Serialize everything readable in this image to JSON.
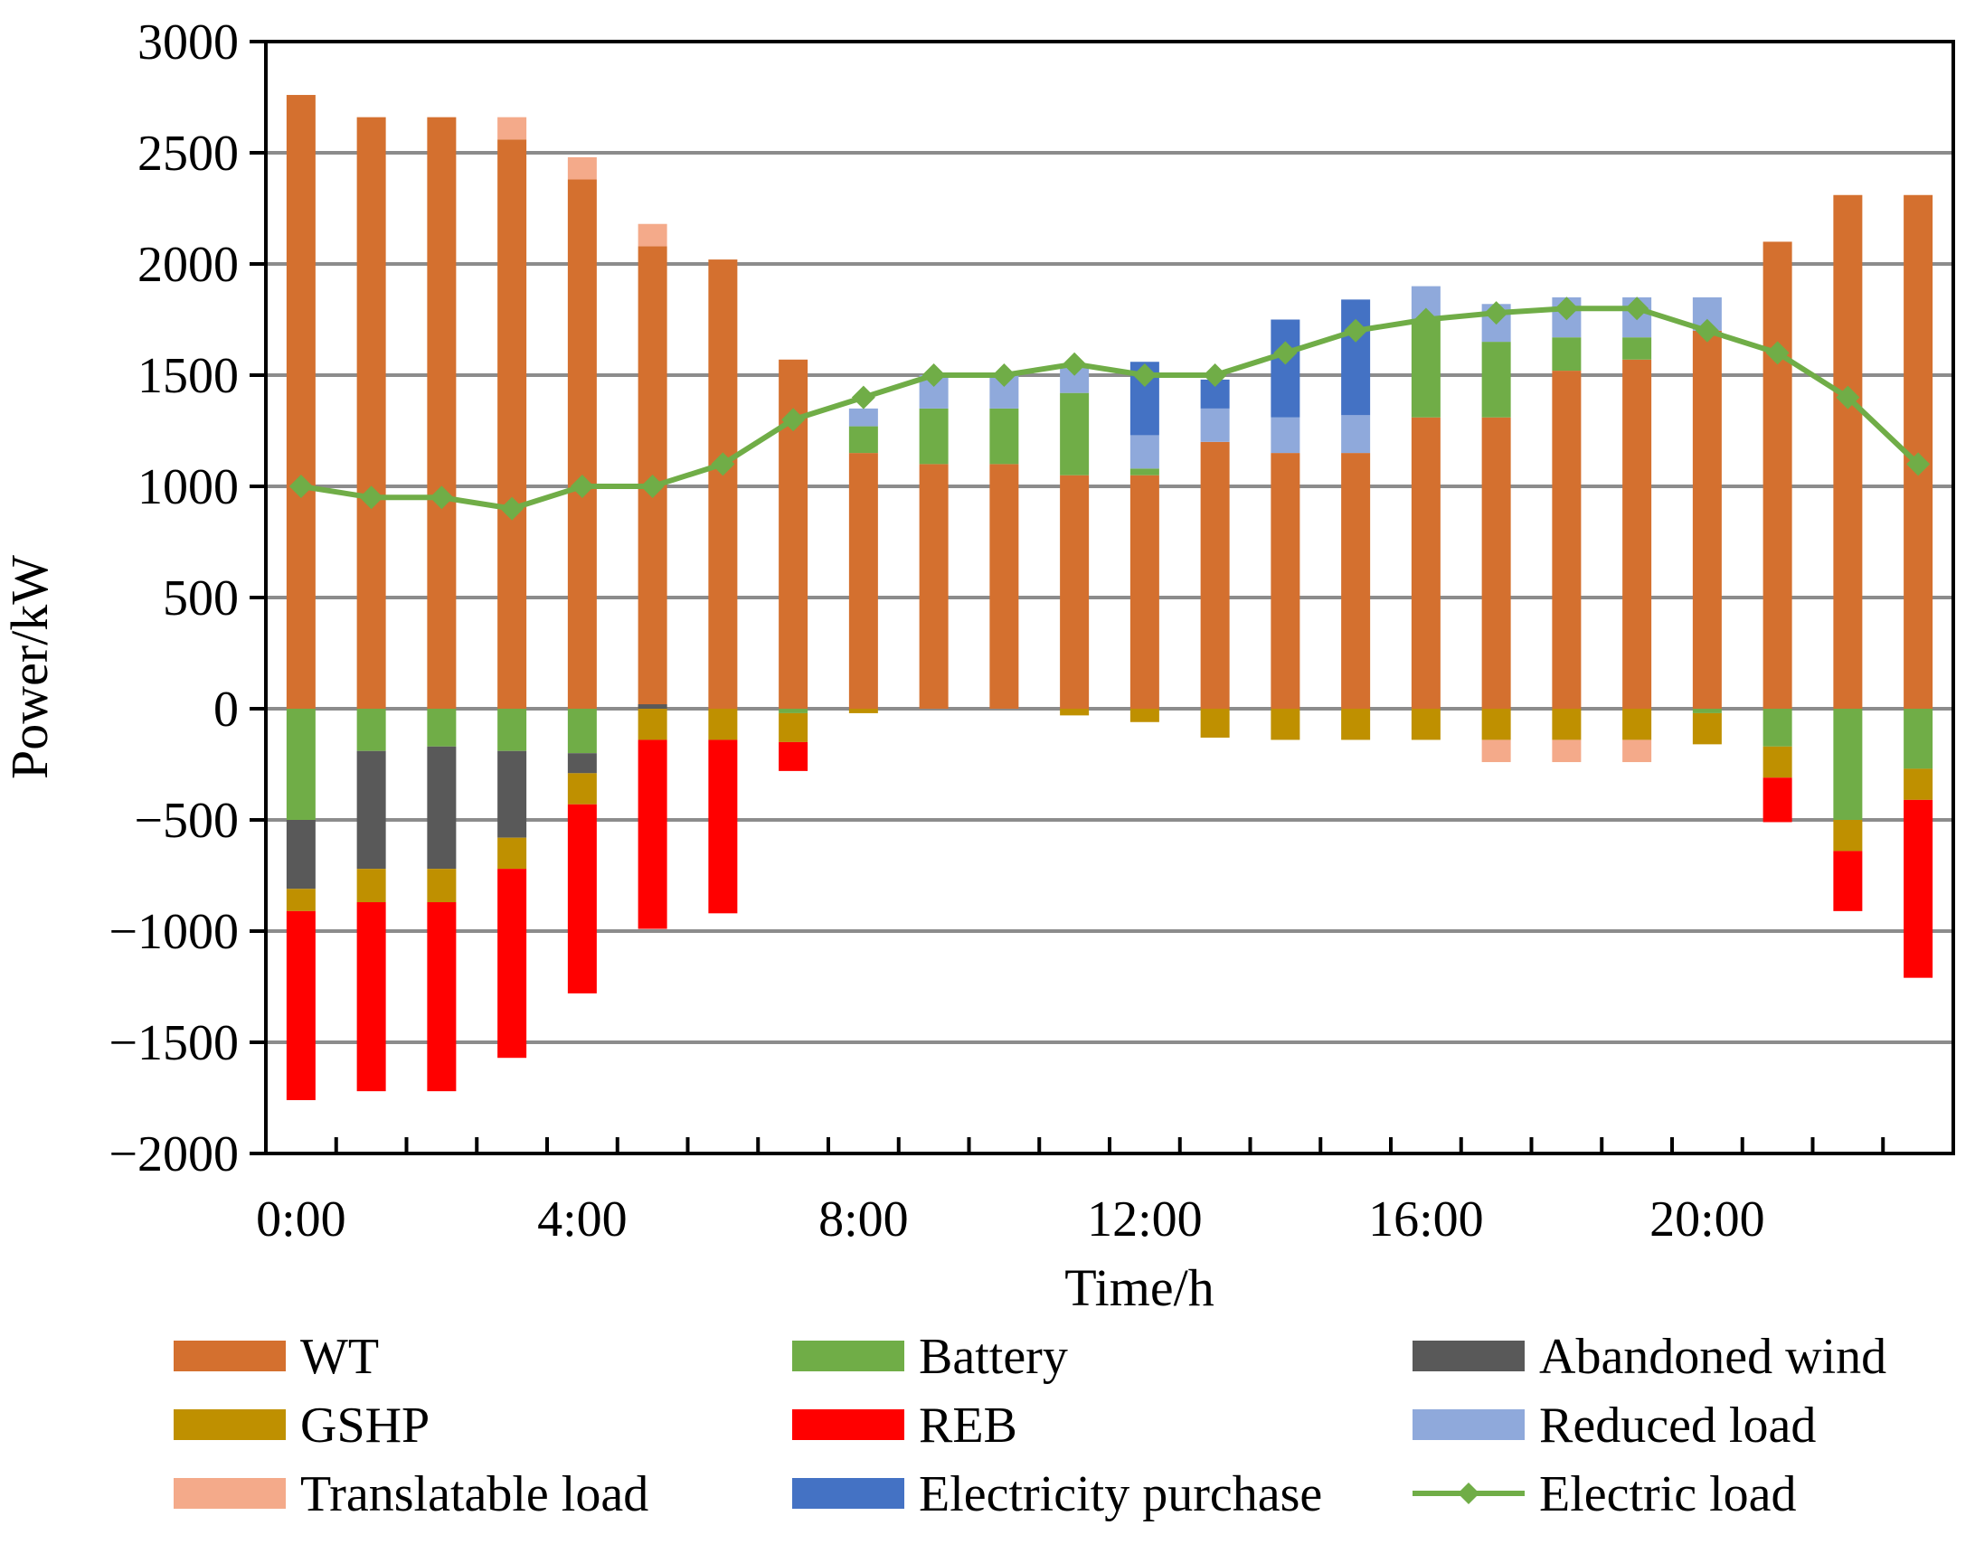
{
  "chart_data": {
    "type": "bar",
    "stacked": true,
    "title": "",
    "xlabel": "Time/h",
    "ylabel": "Power/kW",
    "ylim": [
      -2000,
      3000
    ],
    "y_ticks": [
      3000,
      2500,
      2000,
      1500,
      1000,
      500,
      0,
      -500,
      -1000,
      -1500,
      -2000
    ],
    "y_tick_labels": [
      "3000",
      "2500",
      "2000",
      "1500",
      "1000",
      "500",
      "0",
      "−5 00",
      "−1000",
      "−1500",
      "−2000"
    ],
    "hours": [
      0,
      1,
      2,
      3,
      4,
      5,
      6,
      7,
      8,
      9,
      10,
      11,
      12,
      13,
      14,
      15,
      16,
      17,
      18,
      19,
      20,
      21,
      22,
      23
    ],
    "x_tick_labels": [
      {
        "hour": 0,
        "label": "0:00"
      },
      {
        "hour": 4,
        "label": "4:00"
      },
      {
        "hour": 8,
        "label": "8:00"
      },
      {
        "hour": 12,
        "label": "12:00"
      },
      {
        "hour": 16,
        "label": "16:00"
      },
      {
        "hour": 20,
        "label": "20:00"
      }
    ],
    "colors": {
      "WT": "#D4702F",
      "Battery": "#70AD47",
      "Abandoned wind": "#595959",
      "GSHP": "#BF9000",
      "REB": "#FF0000",
      "Reduced load": "#8FA9DB",
      "Translatable load": "#F4AA8A",
      "Electricity purchase": "#4472C4",
      "Electric load": "#70AD47",
      "grid": "#8C8C8C"
    },
    "positive_series": [
      {
        "name": "WT",
        "values": [
          2760,
          2660,
          2660,
          2560,
          2380,
          2080,
          2020,
          1570,
          1150,
          1100,
          1100,
          1050,
          1050,
          1200,
          1150,
          1150,
          1310,
          1310,
          1520,
          1570,
          1700,
          2100,
          2310,
          2310
        ]
      },
      {
        "name": "Battery",
        "values": [
          0,
          0,
          0,
          0,
          0,
          0,
          0,
          0,
          120,
          250,
          250,
          370,
          30,
          0,
          0,
          0,
          440,
          340,
          150,
          100,
          0,
          0,
          0,
          0
        ]
      },
      {
        "name": "Reduced load",
        "values": [
          0,
          0,
          0,
          0,
          0,
          0,
          0,
          0,
          80,
          150,
          150,
          130,
          150,
          150,
          160,
          170,
          150,
          170,
          180,
          180,
          150,
          0,
          0,
          0
        ]
      },
      {
        "name": "Electricity purchase",
        "values": [
          0,
          0,
          0,
          0,
          0,
          0,
          0,
          0,
          0,
          0,
          0,
          0,
          330,
          130,
          440,
          520,
          0,
          0,
          0,
          0,
          0,
          0,
          0,
          0
        ]
      },
      {
        "name": "Translatable load",
        "values": [
          0,
          0,
          0,
          100,
          100,
          100,
          0,
          0,
          0,
          0,
          0,
          0,
          0,
          0,
          0,
          0,
          0,
          0,
          0,
          0,
          0,
          0,
          0,
          0
        ]
      }
    ],
    "negative_series": [
      {
        "name": "Battery",
        "values": [
          -500,
          -190,
          -170,
          -190,
          -200,
          0,
          0,
          -20,
          0,
          0,
          0,
          0,
          0,
          0,
          0,
          0,
          0,
          0,
          0,
          0,
          -20,
          -170,
          -500,
          -270
        ]
      },
      {
        "name": "Abandoned wind",
        "values": [
          -310,
          -530,
          -550,
          -390,
          -90,
          20,
          0,
          0,
          0,
          0,
          0,
          0,
          0,
          0,
          0,
          0,
          0,
          0,
          0,
          0,
          0,
          0,
          0,
          0
        ]
      },
      {
        "name": "GSHP",
        "values": [
          -100,
          -150,
          -150,
          -140,
          -140,
          -140,
          -140,
          -130,
          -20,
          0,
          0,
          -30,
          -60,
          -130,
          -140,
          -140,
          -140,
          -140,
          -140,
          -140,
          -140,
          -140,
          -140,
          -140
        ]
      },
      {
        "name": "Translatable load",
        "values": [
          0,
          0,
          0,
          0,
          0,
          0,
          0,
          0,
          0,
          0,
          0,
          0,
          0,
          0,
          0,
          0,
          0,
          -100,
          -100,
          -100,
          0,
          0,
          0,
          0
        ]
      },
      {
        "name": "REB",
        "values": [
          -850,
          -850,
          -850,
          -850,
          -850,
          -850,
          -780,
          -130,
          0,
          0,
          0,
          0,
          0,
          0,
          0,
          0,
          0,
          0,
          0,
          0,
          0,
          -200,
          -270,
          -800
        ]
      }
    ],
    "line_series": {
      "name": "Electric load",
      "values": [
        1000,
        950,
        950,
        900,
        1000,
        1000,
        1100,
        1300,
        1400,
        1500,
        1500,
        1550,
        1500,
        1500,
        1600,
        1700,
        1750,
        1780,
        1800,
        1800,
        1700,
        1600,
        1400,
        1100
      ]
    },
    "legend": {
      "placement": "bottom",
      "items": [
        {
          "label": "WT",
          "kind": "bar"
        },
        {
          "label": "Battery",
          "kind": "bar"
        },
        {
          "label": "Abandoned wind",
          "kind": "bar"
        },
        {
          "label": "GSHP",
          "kind": "bar"
        },
        {
          "label": "REB",
          "kind": "bar"
        },
        {
          "label": "Reduced load",
          "kind": "bar"
        },
        {
          "label": "Translatable load",
          "kind": "bar"
        },
        {
          "label": "Electricity purchase",
          "kind": "bar"
        },
        {
          "label": "Electric load",
          "kind": "line"
        }
      ]
    }
  }
}
